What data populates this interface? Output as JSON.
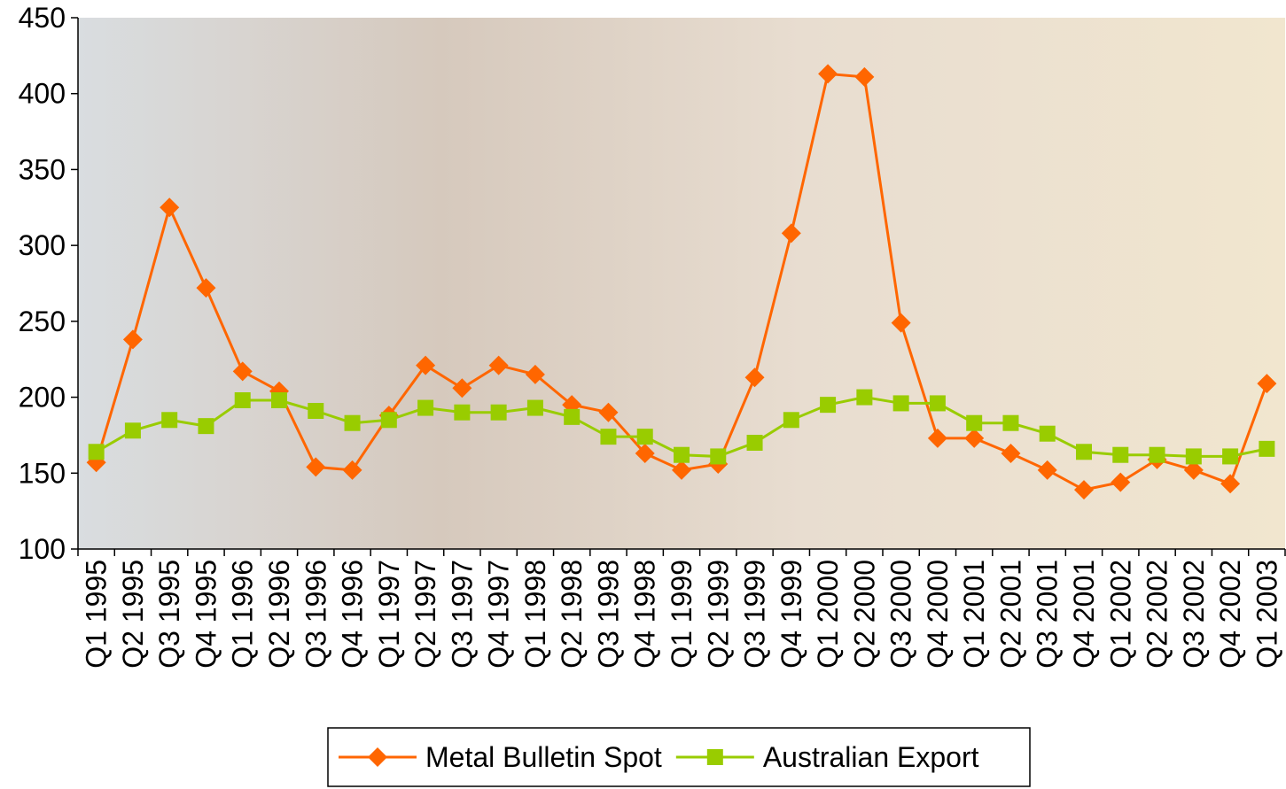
{
  "chart_data": {
    "type": "line",
    "categories": [
      "Q1 1995",
      "Q2 1995",
      "Q3 1995",
      "Q4 1995",
      "Q1 1996",
      "Q2 1996",
      "Q3 1996",
      "Q4 1996",
      "Q1 1997",
      "Q2 1997",
      "Q3 1997",
      "Q4 1997",
      "Q1 1998",
      "Q2 1998",
      "Q3 1998",
      "Q4 1998",
      "Q1 1999",
      "Q2 1999",
      "Q3 1999",
      "Q4 1999",
      "Q1 2000",
      "Q2 2000",
      "Q3 2000",
      "Q4 2000",
      "Q1 2001",
      "Q2 2001",
      "Q3 2001",
      "Q4 2001",
      "Q1 2002",
      "Q2 2002",
      "Q3 2002",
      "Q4 2002",
      "Q1 2003"
    ],
    "series": [
      {
        "name": "Metal Bulletin Spot",
        "color": "#ff6600",
        "marker": "diamond",
        "values": [
          157,
          238,
          325,
          272,
          217,
          204,
          154,
          152,
          188,
          221,
          206,
          221,
          215,
          195,
          190,
          163,
          152,
          156,
          213,
          308,
          413,
          411,
          249,
          173,
          173,
          163,
          152,
          139,
          144,
          159,
          152,
          143,
          209
        ]
      },
      {
        "name": "Australian Export",
        "color": "#99cc00",
        "marker": "square",
        "values": [
          164,
          178,
          185,
          181,
          198,
          198,
          191,
          183,
          185,
          193,
          190,
          190,
          193,
          187,
          174,
          174,
          162,
          161,
          170,
          185,
          195,
          200,
          196,
          196,
          183,
          183,
          176,
          164,
          162,
          162,
          161,
          161,
          166
        ]
      }
    ],
    "ylim": [
      100,
      450
    ],
    "yticks": [
      100,
      150,
      200,
      250,
      300,
      350,
      400,
      450
    ],
    "grid": false,
    "legend": "bottom"
  }
}
